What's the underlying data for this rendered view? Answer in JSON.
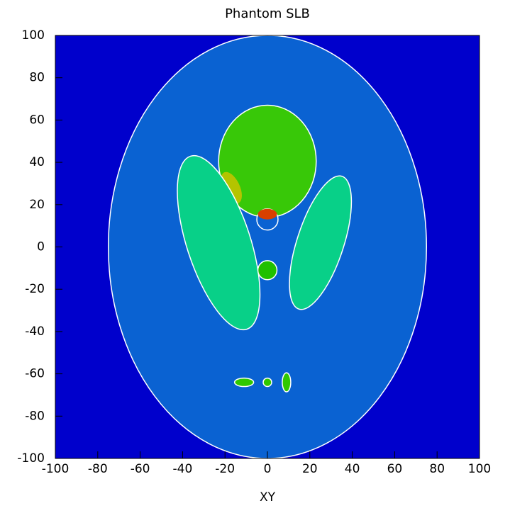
{
  "chart_data": {
    "type": "ellipse-map",
    "title": "Phantom SLB",
    "x_label": "XY",
    "xlim": [
      -100,
      100
    ],
    "ylim": [
      -100,
      100
    ],
    "xticks": [
      -100,
      -80,
      -60,
      -40,
      -20,
      0,
      20,
      40,
      60,
      80,
      100
    ],
    "yticks": [
      -100,
      -80,
      -60,
      -40,
      -20,
      0,
      20,
      40,
      60,
      80,
      100
    ],
    "background": "#0000cc",
    "ellipses": [
      {
        "cx": 0,
        "cy": 0,
        "rx": 75,
        "ry": 100,
        "angle": 0,
        "color": "#0a62d2"
      },
      {
        "cx": 0,
        "cy": 40.5,
        "rx": 23,
        "ry": 26.5,
        "angle": 0,
        "color": "#38c808"
      },
      {
        "cx": -17,
        "cy": 28,
        "rx": 4,
        "ry": 8,
        "angle": 25,
        "color": "#b4c400"
      },
      {
        "cx": -23,
        "cy": 2,
        "rx": 15,
        "ry": 43,
        "angle": 18,
        "color": "#08d088"
      },
      {
        "cx": 25,
        "cy": 2,
        "rx": 11,
        "ry": 33,
        "angle": -18,
        "color": "#08d088"
      },
      {
        "cx": 0,
        "cy": 13,
        "rx": 5,
        "ry": 5,
        "angle": 0,
        "color": "#0a62d2"
      },
      {
        "cx": 0,
        "cy": 15.5,
        "rx": 4.5,
        "ry": 2.5,
        "angle": 0,
        "color": "#d84000"
      },
      {
        "cx": 0,
        "cy": -11,
        "rx": 4.5,
        "ry": 4.5,
        "angle": 0,
        "color": "#20c000"
      },
      {
        "cx": -11,
        "cy": -64,
        "rx": 4.5,
        "ry": 2,
        "angle": 0,
        "color": "#30c800"
      },
      {
        "cx": 0,
        "cy": -64,
        "rx": 2,
        "ry": 2,
        "angle": 0,
        "color": "#30c800"
      },
      {
        "cx": 9,
        "cy": -64,
        "rx": 2,
        "ry": 4.5,
        "angle": 0,
        "color": "#30c800"
      }
    ]
  }
}
